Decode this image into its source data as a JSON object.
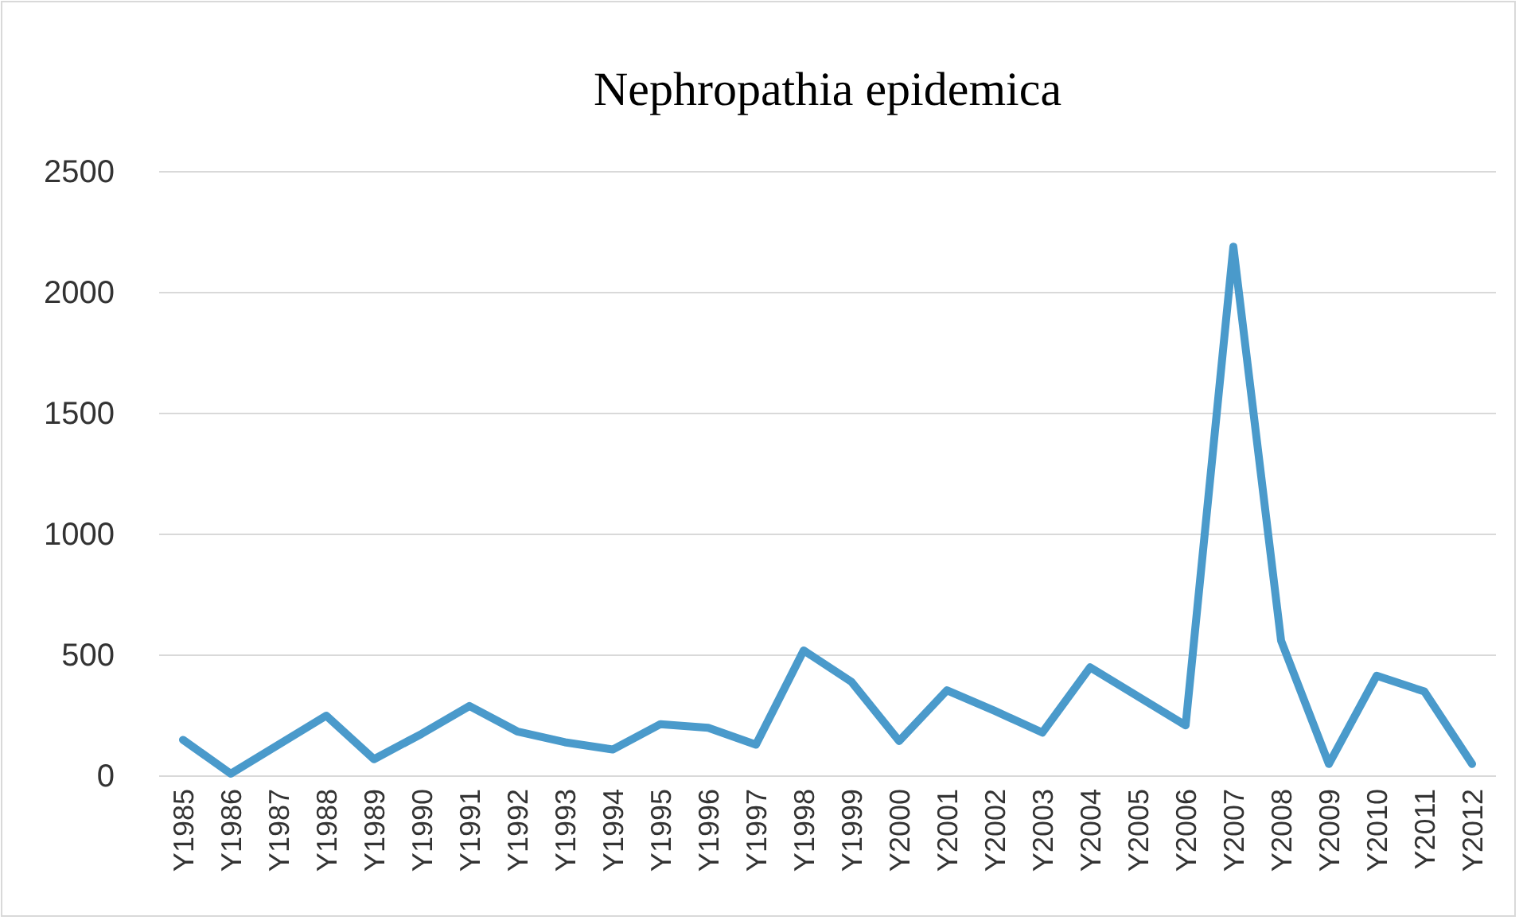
{
  "chart_data": {
    "type": "line",
    "title": "Nephropathia  epidemica",
    "categories": [
      "Y1985",
      "Y1986",
      "Y1987",
      "Y1988",
      "Y1989",
      "Y1990",
      "Y1991",
      "Y1992",
      "Y1993",
      "Y1994",
      "Y1995",
      "Y1996",
      "Y1997",
      "Y1998",
      "Y1999",
      "Y2000",
      "Y2001",
      "Y2002",
      "Y2003",
      "Y2004",
      "Y2005",
      "Y2006",
      "Y2007",
      "Y2008",
      "Y2009",
      "Y2010",
      "Y2011",
      "Y2012"
    ],
    "series": [
      {
        "color": "#4a9acb",
        "values": [
          150,
          10,
          130,
          250,
          70,
          175,
          290,
          185,
          140,
          110,
          215,
          200,
          130,
          520,
          390,
          145,
          355,
          270,
          180,
          450,
          330,
          210,
          2190,
          560,
          50,
          415,
          350,
          50
        ]
      }
    ],
    "ylim": [
      0,
      2500
    ],
    "yticks": [
      0,
      500,
      1000,
      1500,
      2000,
      2500
    ],
    "grid": "y",
    "marker": "none",
    "line_style": "solid"
  }
}
